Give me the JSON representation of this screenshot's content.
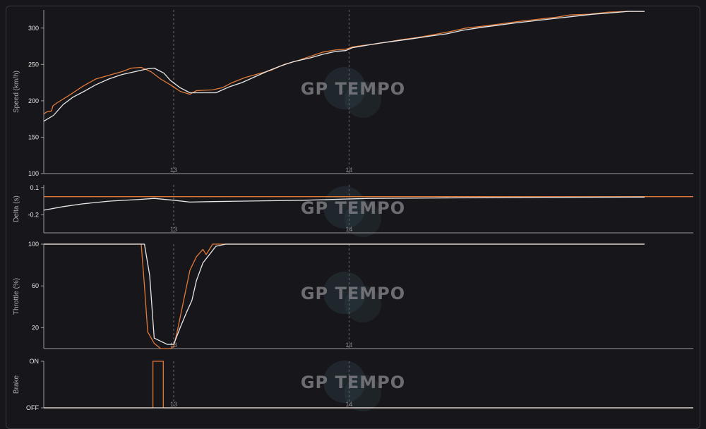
{
  "chart_data": [
    {
      "type": "line",
      "ylabel": "Speed (km/h)",
      "ylim": [
        100,
        325
      ],
      "yticks": [
        100,
        150,
        200,
        250,
        300
      ],
      "x_range": [
        0,
        1000
      ],
      "corners": [
        {
          "label": "13",
          "x": 200
        },
        {
          "label": "14",
          "x": 470
        }
      ],
      "series": [
        {
          "color": "#e07a3a",
          "points": [
            [
              0,
              182
            ],
            [
              5,
              185
            ],
            [
              12,
              186
            ],
            [
              14,
              193
            ],
            [
              20,
              197
            ],
            [
              40,
              208
            ],
            [
              60,
              220
            ],
            [
              80,
              230
            ],
            [
              100,
              235
            ],
            [
              120,
              240
            ],
            [
              135,
              245
            ],
            [
              150,
              246
            ],
            [
              165,
              240
            ],
            [
              180,
              230
            ],
            [
              195,
              222
            ],
            [
              210,
              213
            ],
            [
              225,
              209
            ],
            [
              235,
              214
            ],
            [
              260,
              215
            ],
            [
              275,
              218
            ],
            [
              290,
              225
            ],
            [
              310,
              232
            ],
            [
              330,
              237
            ],
            [
              350,
              242
            ],
            [
              370,
              250
            ],
            [
              390,
              255
            ],
            [
              410,
              261
            ],
            [
              430,
              267
            ],
            [
              450,
              270
            ],
            [
              465,
              271
            ],
            [
              475,
              274
            ],
            [
              490,
              276
            ],
            [
              510,
              278
            ],
            [
              530,
              281
            ],
            [
              550,
              284
            ],
            [
              575,
              287
            ],
            [
              600,
              291
            ],
            [
              625,
              295
            ],
            [
              650,
              300
            ],
            [
              680,
              303
            ],
            [
              705,
              306
            ],
            [
              730,
              309
            ],
            [
              760,
              312
            ],
            [
              790,
              315
            ],
            [
              810,
              318
            ],
            [
              840,
              319
            ],
            [
              870,
              322
            ],
            [
              900,
              323
            ],
            [
              925,
              323
            ]
          ]
        },
        {
          "color": "#e8e8e8",
          "points": [
            [
              0,
              172
            ],
            [
              15,
              180
            ],
            [
              30,
              195
            ],
            [
              45,
              205
            ],
            [
              60,
              212
            ],
            [
              80,
              222
            ],
            [
              100,
              230
            ],
            [
              120,
              236
            ],
            [
              140,
              240
            ],
            [
              160,
              244
            ],
            [
              170,
              245
            ],
            [
              185,
              238
            ],
            [
              195,
              228
            ],
            [
              210,
              218
            ],
            [
              225,
              211
            ],
            [
              240,
              211
            ],
            [
              265,
              211
            ],
            [
              285,
              219
            ],
            [
              305,
              225
            ],
            [
              325,
              233
            ],
            [
              345,
              241
            ],
            [
              365,
              248
            ],
            [
              385,
              254
            ],
            [
              410,
              259
            ],
            [
              430,
              264
            ],
            [
              450,
              268
            ],
            [
              465,
              269
            ],
            [
              475,
              273
            ],
            [
              495,
              276
            ],
            [
              515,
              279
            ],
            [
              540,
              282
            ],
            [
              565,
              285
            ],
            [
              595,
              289
            ],
            [
              620,
              292
            ],
            [
              645,
              297
            ],
            [
              675,
              301
            ],
            [
              700,
              304
            ],
            [
              725,
              307
            ],
            [
              755,
              310
            ],
            [
              785,
              313
            ],
            [
              815,
              316
            ],
            [
              845,
              319
            ],
            [
              875,
              321
            ],
            [
              900,
              323
            ],
            [
              925,
              323
            ]
          ]
        }
      ]
    },
    {
      "type": "line",
      "ylabel": "Delta (s)",
      "ylim": [
        -0.4,
        0.13
      ],
      "yticks": [
        0.1,
        -0.2
      ],
      "x_range": [
        0,
        1000
      ],
      "corners": [
        {
          "label": "13",
          "x": 200
        },
        {
          "label": "14",
          "x": 470
        }
      ],
      "series": [
        {
          "color": "#e07a3a",
          "points": [
            [
              0,
              0
            ],
            [
              1000,
              0
            ]
          ]
        },
        {
          "color": "#e8e8e8",
          "points": [
            [
              0,
              -0.15
            ],
            [
              30,
              -0.11
            ],
            [
              60,
              -0.08
            ],
            [
              100,
              -0.05
            ],
            [
              150,
              -0.03
            ],
            [
              170,
              -0.02
            ],
            [
              200,
              -0.04
            ],
            [
              225,
              -0.06
            ],
            [
              260,
              -0.055
            ],
            [
              300,
              -0.05
            ],
            [
              350,
              -0.045
            ],
            [
              400,
              -0.04
            ],
            [
              450,
              -0.03
            ],
            [
              500,
              -0.02
            ],
            [
              600,
              -0.015
            ],
            [
              700,
              -0.01
            ],
            [
              800,
              -0.007
            ],
            [
              925,
              -0.005
            ]
          ]
        }
      ]
    },
    {
      "type": "line",
      "ylabel": "Throttle (%)",
      "ylim": [
        0,
        100
      ],
      "yticks": [
        100,
        60,
        20
      ],
      "x_range": [
        0,
        1000
      ],
      "corners": [
        {
          "label": "13",
          "x": 200
        },
        {
          "label": "14",
          "x": 470
        }
      ],
      "series": [
        {
          "color": "#e07a3a",
          "points": [
            [
              0,
              100
            ],
            [
              150,
              100
            ],
            [
              155,
              60
            ],
            [
              160,
              16
            ],
            [
              170,
              5
            ],
            [
              180,
              0
            ],
            [
              195,
              0
            ],
            [
              200,
              2
            ],
            [
              205,
              15
            ],
            [
              215,
              45
            ],
            [
              225,
              75
            ],
            [
              235,
              88
            ],
            [
              245,
              95
            ],
            [
              250,
              90
            ],
            [
              260,
              100
            ],
            [
              280,
              100
            ],
            [
              400,
              100
            ],
            [
              620,
              100
            ],
            [
              925,
              100
            ]
          ]
        },
        {
          "color": "#e8e8e8",
          "points": [
            [
              0,
              100
            ],
            [
              155,
              100
            ],
            [
              163,
              70
            ],
            [
              170,
              10
            ],
            [
              180,
              7
            ],
            [
              190,
              4
            ],
            [
              200,
              4
            ],
            [
              210,
              20
            ],
            [
              220,
              35
            ],
            [
              228,
              46
            ],
            [
              235,
              65
            ],
            [
              245,
              82
            ],
            [
              255,
              90
            ],
            [
              265,
              98
            ],
            [
              280,
              100
            ],
            [
              400,
              100
            ],
            [
              925,
              100
            ]
          ]
        }
      ]
    },
    {
      "type": "line",
      "ylabel": "Brake",
      "yticks": [
        "OFF",
        "ON"
      ],
      "x_range": [
        0,
        1000
      ],
      "corners": [
        {
          "label": "13",
          "x": 200
        },
        {
          "label": "14",
          "x": 470
        }
      ],
      "series": [
        {
          "color": "#e07a3a",
          "points": [
            [
              0,
              0
            ],
            [
              168,
              0
            ],
            [
              168,
              1
            ],
            [
              184,
              1
            ],
            [
              184,
              0
            ],
            [
              1000,
              0
            ]
          ]
        },
        {
          "color": "#e8e8e8",
          "points": [
            [
              0,
              0
            ],
            [
              1000,
              0
            ]
          ]
        }
      ]
    }
  ],
  "watermark": "GP TEMPO"
}
